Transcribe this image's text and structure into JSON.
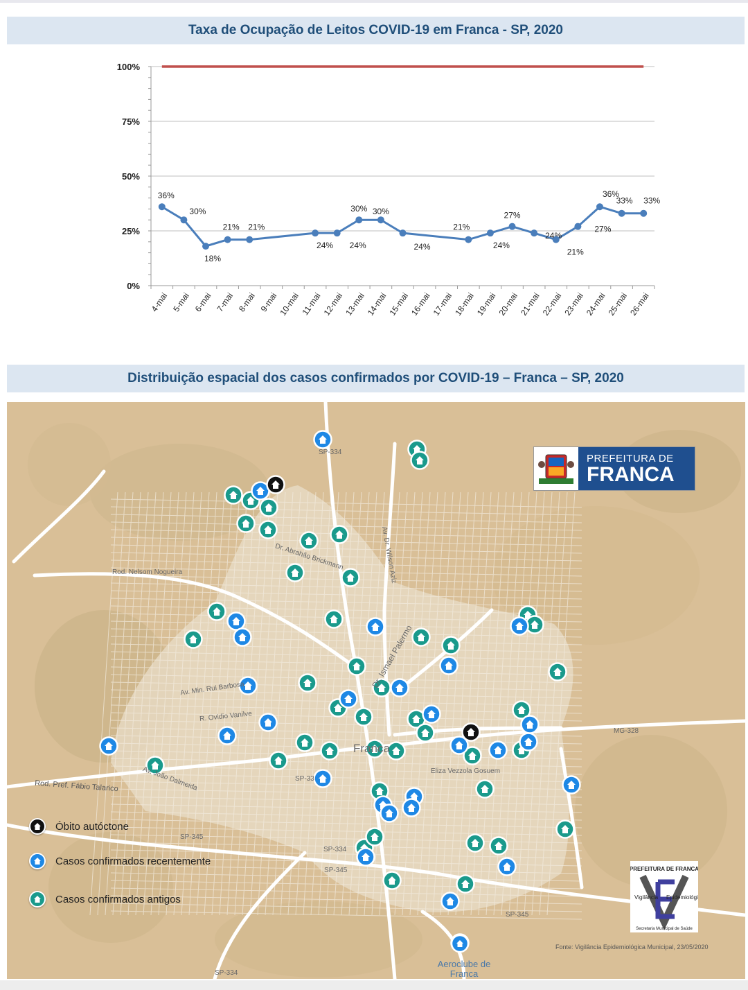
{
  "chart_title": "Taxa de Ocupação de Leitos COVID-19 em Franca - SP, 2020",
  "chart_data": {
    "type": "line",
    "title": "Taxa de Ocupação de Leitos COVID-19 em Franca - SP, 2020",
    "xlabel": "",
    "ylabel": "",
    "categories": [
      "4-mai",
      "5-mai",
      "6-mai",
      "7-mai",
      "8-mai",
      "9-mai",
      "10-mai",
      "11-mai",
      "12-mai",
      "13-mai",
      "14-mai",
      "15-mai",
      "16-mai",
      "17-mai",
      "18-mai",
      "19-mai",
      "20-mai",
      "21-mai",
      "22-mai",
      "23-mai",
      "24-mai",
      "25-mai",
      "26-mai"
    ],
    "ylim": [
      0,
      100
    ],
    "yticks": [
      0,
      25,
      50,
      75,
      100
    ],
    "ytick_labels": [
      "0%",
      "25%",
      "50%",
      "75%",
      "100%"
    ],
    "series": [
      {
        "values": [
          36,
          30,
          18,
          21,
          21,
          null,
          null,
          24,
          24,
          30,
          30,
          24,
          null,
          null,
          21,
          24,
          27,
          24,
          21,
          27,
          36,
          33,
          33
        ],
        "labels": [
          "36%",
          "30%",
          "18%",
          "21%",
          "21%",
          "",
          "",
          "24%",
          "24%",
          "30%",
          "30%",
          "24%",
          "",
          "",
          "21%",
          "24%",
          "27%",
          "24%",
          "21%",
          "27%",
          "36%",
          "33%",
          "33%"
        ],
        "color": "#4a7ebb"
      },
      {
        "values": [
          100,
          null,
          null,
          null,
          null,
          null,
          null,
          null,
          null,
          null,
          null,
          null,
          null,
          null,
          null,
          null,
          null,
          null,
          null,
          null,
          null,
          null,
          100
        ],
        "color": "#c0504d"
      }
    ],
    "grid": true,
    "legend": "none"
  },
  "map_title": "Distribuição espacial dos casos confirmados por COVID-19 – Franca – SP, 2020",
  "map": {
    "legend": {
      "death": "Óbito autóctone",
      "recent": "Casos confirmados recentemente",
      "old": "Casos confirmados antigos"
    },
    "colors": {
      "death": "#111111",
      "recent": "#1e88e5",
      "old": "#1a9a8c"
    },
    "logo_prefeitura": {
      "line1": "PREFEITURA DE",
      "line2": "FRANCA"
    },
    "logo_ve": {
      "top": "PREFEITURA DE FRANCA",
      "left": "Vigilância",
      "right": "Epidemiológica",
      "bottom": "Secretaria Municipal de Saúde"
    },
    "source": "Fonte: Vigilância Epidemiológica Municipal, 23/05/2020",
    "place_labels": {
      "aeroclube": "Aeroclube de Franca",
      "franca": "Franca",
      "sp334_top": "SP-334",
      "sp334_mid": "SP-334",
      "sp334_bottom": "SP-334",
      "sp345_left": "SP-345",
      "sp345_mid": "SP-345",
      "sp345_right": "SP-345",
      "sp33": "SP-33",
      "mg328": "MG-328",
      "rod_talarico": "Rod. Pref. Fábio Talarico",
      "rod_nelsom": "Rod. Nelsom Nogueira",
      "av_abrahao": "Dr. Abrahão Brickmann",
      "av_wilson": "Av. Dr. Wilson Aziz",
      "av_rui": "Av. Min. Rui Barbosa",
      "r_ovidio": "R. Ovidio Vanilve",
      "av_eliza": "Eliza Vezzola Gosuem",
      "av_palermo": "Dr. Ismael Palermo",
      "av_joao": "Av. João Dalmeida"
    },
    "markers": {
      "death": [
        "home-icon",
        "home-icon"
      ],
      "recent_count": 34,
      "old_count": 45
    }
  }
}
